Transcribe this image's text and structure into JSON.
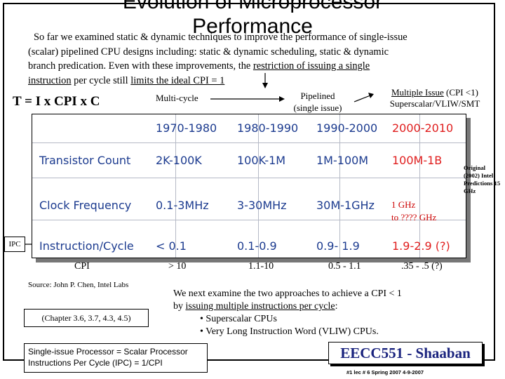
{
  "slide": {
    "title": "Evolution of Microprocessor",
    "title_line2": "Performance",
    "intro_lines": [
      "So far we examined static & dynamic techniques to improve the performance of single-issue",
      "(scalar) pipelined CPU designs including: static & dynamic scheduling, static & dynamic",
      "branch predication. Even with these improvements, the "
    ],
    "intro_restriction": "restriction of issuing a single",
    "intro_last_u1": "instruction",
    "intro_last_mid": " per cycle still ",
    "intro_last_u2": "limits the ideal CPI = 1",
    "formula": "T = I x CPI x C",
    "multi_cycle": "Multi-cycle",
    "pipelined_l1": "Pipelined",
    "pipelined_l2": "(single issue)",
    "multiple_issue_l1": "Multiple Issue",
    "multiple_issue_l1b": "(CPI <1)",
    "multiple_issue_l2": "Superscalar/VLIW/SMT",
    "table": {
      "headers": [
        "1970-1980",
        "1980-1990",
        "1990-2000",
        "2000-2010"
      ],
      "rows": [
        {
          "label": "Transistor Count",
          "values": [
            "2K-100K",
            "100K-1M",
            "1M-100M",
            "100M-1B"
          ]
        },
        {
          "label": "Clock Frequency",
          "values": [
            "0.1-3MHz",
            "3-30MHz",
            "30M-1GHz",
            ""
          ]
        },
        {
          "label": "Instruction/Cycle",
          "values": [
            "< 0.1",
            "0.1-0.9",
            "0.9- 1.9",
            "1.9-2.9 (?)"
          ]
        }
      ]
    },
    "ghz_l1": "1 GHz",
    "ghz_l2": "to ???? GHz",
    "original_note": "Original (2002) Intel Predictions 15 GHz",
    "ipc_label": "IPC",
    "cpi_row": [
      "CPI",
      "> 10",
      "1.1-10",
      "0.5 - 1.1",
      ".35 - .5 (?)"
    ],
    "source": "Source: John P. Chen, Intel Labs",
    "chapters": "(Chapter 3.6, 3.7, 4.3, 4.5)",
    "next_l1": "We next examine the two approaches to achieve a CPI < 1",
    "next_l2a": "by ",
    "next_l2u": "issuing multiple instructions per cycle",
    "next_l2b": ":",
    "bullets": [
      "• Superscalar CPUs",
      "• Very Long Instruction Word (VLIW) CPUs."
    ],
    "def_l1": "Single-issue Processor = Scalar Processor",
    "def_l2": "Instructions Per Cycle (IPC) = 1/CPI",
    "logo": "EECC551 - Shaaban",
    "footer": "#1 lec # 6 Spring 2007 4-9-2007",
    "colors": {
      "table_text": "#1c3b8f",
      "accent_red": "#e01e1e",
      "logo_text": "#1a237e"
    }
  }
}
